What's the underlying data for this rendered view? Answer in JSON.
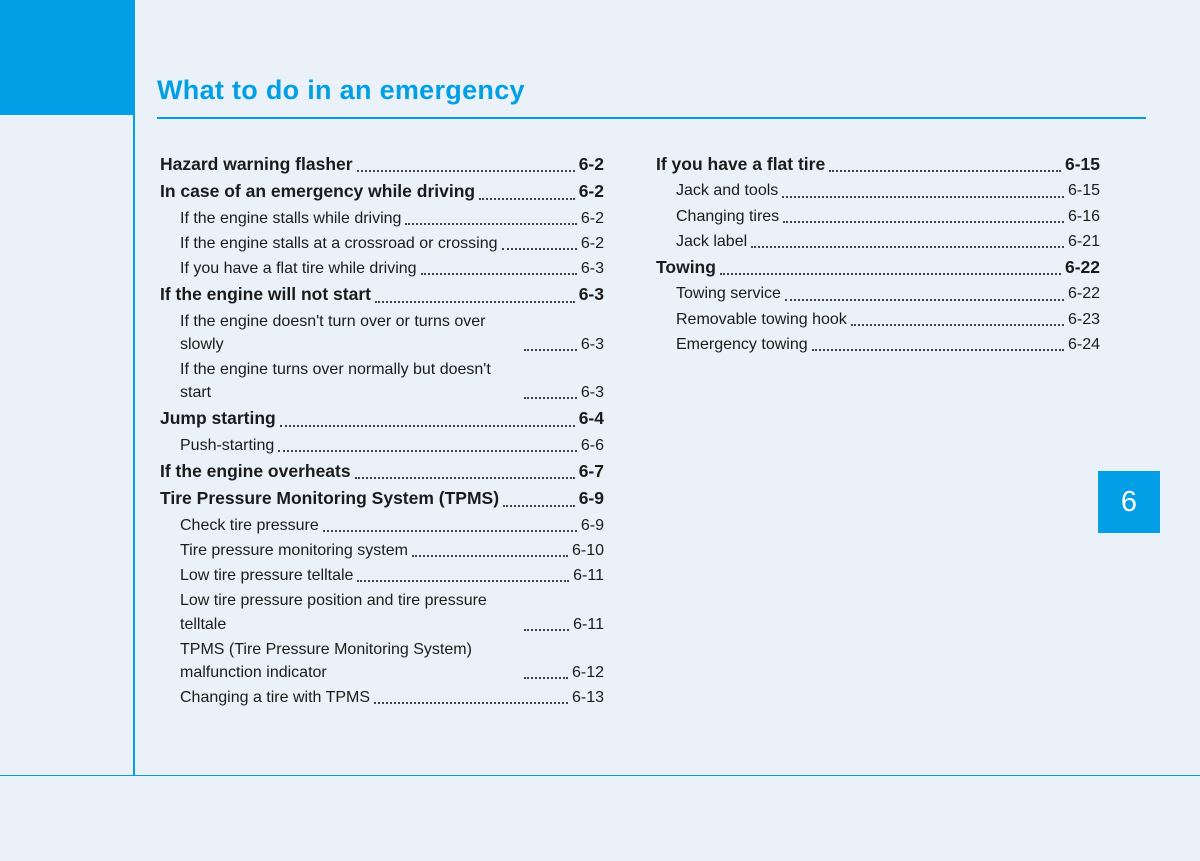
{
  "accent_color": "#029fe7",
  "background_color": "#eaf1f8",
  "chapter": {
    "title": "What to do in an emergency",
    "number": "6"
  },
  "toc": {
    "col1": [
      {
        "level": "main",
        "label": "Hazard warning flasher",
        "page": "6-2"
      },
      {
        "level": "main",
        "label": "In case of an emergency while driving",
        "page": "6-2"
      },
      {
        "level": "sub",
        "label": "If the engine stalls while driving",
        "page": "6-2"
      },
      {
        "level": "sub",
        "label": "If the engine stalls at a crossroad or crossing",
        "page": "6-2"
      },
      {
        "level": "sub",
        "label": "If you have a flat tire while driving",
        "page": "6-3"
      },
      {
        "level": "main",
        "label": "If the engine will not start",
        "page": "6-3"
      },
      {
        "level": "sub",
        "label": "If the engine doesn't turn over or turns over slowly",
        "page": "6-3",
        "wrap": true
      },
      {
        "level": "sub",
        "label": "If the engine turns over normally but doesn't start",
        "page": "6-3",
        "wrap": true
      },
      {
        "level": "main",
        "label": "Jump starting",
        "page": "6-4"
      },
      {
        "level": "sub",
        "label": "Push-starting",
        "page": "6-6"
      },
      {
        "level": "main",
        "label": "If the engine overheats",
        "page": "6-7"
      },
      {
        "level": "main",
        "label": "Tire Pressure Monitoring System (TPMS)",
        "page": "6-9"
      },
      {
        "level": "sub",
        "label": "Check tire pressure",
        "page": "6-9"
      },
      {
        "level": "sub",
        "label": "Tire pressure monitoring system",
        "page": "6-10"
      },
      {
        "level": "sub",
        "label": "Low tire pressure telltale",
        "page": "6-11"
      },
      {
        "level": "sub",
        "label": "Low tire pressure position and tire pressure telltale",
        "page": "6-11",
        "wrap": true
      },
      {
        "level": "sub",
        "label": "TPMS (Tire Pressure Monitoring System) malfunction indicator",
        "page": "6-12",
        "wrap": true
      },
      {
        "level": "sub",
        "label": "Changing a tire with TPMS",
        "page": "6-13"
      }
    ],
    "col2": [
      {
        "level": "main",
        "label": "If you have a flat tire",
        "page": "6-15"
      },
      {
        "level": "sub",
        "label": "Jack and tools",
        "page": "6-15"
      },
      {
        "level": "sub",
        "label": "Changing tires",
        "page": "6-16"
      },
      {
        "level": "sub",
        "label": "Jack label",
        "page": "6-21"
      },
      {
        "level": "main",
        "label": "Towing",
        "page": "6-22"
      },
      {
        "level": "sub",
        "label": "Towing service",
        "page": "6-22"
      },
      {
        "level": "sub",
        "label": "Removable towing hook",
        "page": "6-23"
      },
      {
        "level": "sub",
        "label": "Emergency towing",
        "page": "6-24"
      }
    ]
  }
}
